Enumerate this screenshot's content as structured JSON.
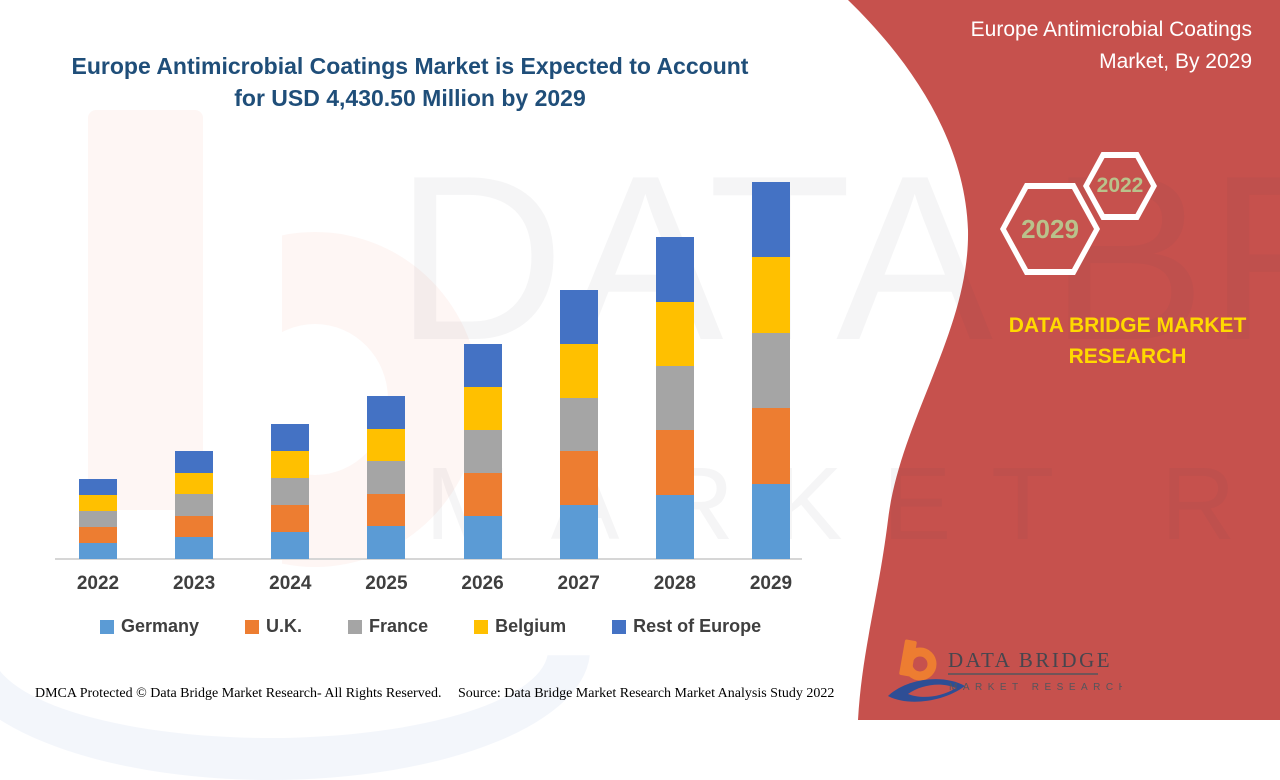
{
  "page": {
    "background_color": "#FFFFFF"
  },
  "header": {
    "title_line1": "Europe Antimicrobial Coatings Market is Expected to Account",
    "title_line2": "for USD 4,430.50 Million by 2029",
    "title_color": "#1F4E79"
  },
  "side_panel": {
    "background_color": "#C6514D",
    "title_line1": "Europe Antimicrobial Coatings",
    "title_line2": "Market, By 2029",
    "hexagons": [
      {
        "label": "2029"
      },
      {
        "label": "2022"
      }
    ],
    "hexagon_label_color": "#B9C28B",
    "brand_text": "DATA BRIDGE MARKET RESEARCH",
    "brand_text_color": "#FFD900",
    "logo": {
      "wordmark": "DATA BRIDGE",
      "subtitle": "MARKET RESEARCH",
      "mark_orange": "#ED7D31",
      "mark_blue": "#2E4E95"
    }
  },
  "watermark": {
    "line1": "DATA BRIDGE",
    "line2": "MARKET RESEARCH"
  },
  "footer": {
    "dmca_text": "DMCA Protected © Data Bridge Market Research- All Rights Reserved.",
    "source_text": "Source: Data Bridge Market Research Market Analysis Study 2022"
  },
  "chart_data": {
    "type": "bar",
    "stacked": true,
    "title": "Europe Antimicrobial Coatings Market is Expected to Account for USD 4,430.50 Million by 2029",
    "unit": "USD Million",
    "categories": [
      "2022",
      "2023",
      "2024",
      "2025",
      "2026",
      "2027",
      "2028",
      "2029"
    ],
    "series": [
      {
        "name": "Germany",
        "color": "#5B9BD5",
        "values": [
          188,
          254,
          318,
          382,
          506,
          632,
          756,
          886.1
        ]
      },
      {
        "name": "U.K.",
        "color": "#ED7D31",
        "values": [
          188,
          254,
          318,
          382,
          506,
          632,
          756,
          886.1
        ]
      },
      {
        "name": "France",
        "color": "#A5A5A5",
        "values": [
          188,
          254,
          318,
          382,
          506,
          632,
          756,
          886.1
        ]
      },
      {
        "name": "Belgium",
        "color": "#FFC000",
        "values": [
          188,
          254,
          318,
          382,
          506,
          632,
          756,
          886.1
        ]
      },
      {
        "name": "Rest of Europe",
        "color": "#4472C4",
        "values": [
          188,
          254,
          318,
          382,
          506,
          632,
          756,
          886.1
        ]
      }
    ],
    "totals": [
      940,
      1270,
      1590,
      1910,
      2530,
      3160,
      3780,
      4430.5
    ],
    "xlabel": "",
    "ylabel": "",
    "ylim": [
      0,
      4600
    ],
    "gridlines": false,
    "y_axis_shown": false,
    "legend_position": "bottom"
  }
}
